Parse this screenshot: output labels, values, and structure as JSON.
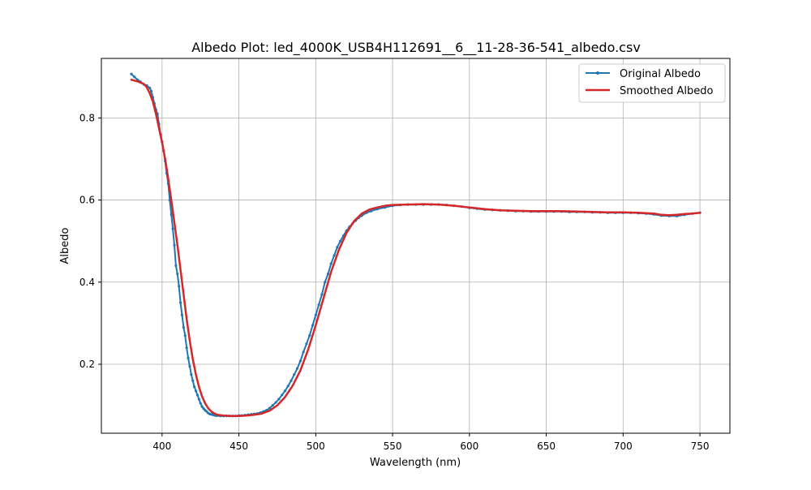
{
  "chart_data": {
    "type": "line",
    "title": "Albedo Plot: led_4000K_USB4H112691__6__11-28-36-541_albedo.csv",
    "xlabel": "Wavelength (nm)",
    "ylabel": "Albedo",
    "xlim": [
      360.5,
      769.5
    ],
    "ylim": [
      0.032,
      0.945
    ],
    "xticks": [
      400,
      450,
      500,
      550,
      600,
      650,
      700,
      750
    ],
    "yticks": [
      0.2,
      0.4,
      0.6,
      0.8
    ],
    "grid": true,
    "legend_position": "top-right",
    "series": [
      {
        "name": "Original Albedo",
        "color": "#1f77b4",
        "markers": true,
        "x": [
          380,
          382,
          384,
          386,
          388,
          390,
          392,
          393,
          394,
          395,
          396,
          397,
          398,
          399,
          400,
          401,
          402,
          403,
          404,
          405,
          406,
          407,
          408,
          409,
          410,
          411,
          412,
          413,
          414,
          415,
          416,
          417,
          418,
          419,
          420,
          421,
          422,
          423,
          424,
          425,
          426,
          427,
          428,
          429,
          430,
          431,
          432,
          433,
          434,
          435,
          436,
          438,
          440,
          442,
          444,
          446,
          448,
          450,
          452,
          454,
          456,
          458,
          460,
          462,
          464,
          466,
          468,
          470,
          472,
          474,
          476,
          478,
          480,
          482,
          484,
          486,
          488,
          490,
          492,
          494,
          496,
          498,
          500,
          502,
          504,
          506,
          508,
          510,
          512,
          514,
          516,
          518,
          520,
          522,
          524,
          526,
          528,
          530,
          533,
          536,
          540,
          545,
          550,
          555,
          560,
          565,
          570,
          575,
          580,
          585,
          590,
          595,
          600,
          605,
          610,
          615,
          620,
          625,
          630,
          635,
          640,
          645,
          650,
          655,
          660,
          665,
          670,
          675,
          680,
          685,
          690,
          695,
          700,
          705,
          710,
          715,
          720,
          725,
          730,
          735,
          740,
          745,
          750
        ],
        "y": [
          0.907,
          0.9,
          0.893,
          0.888,
          0.882,
          0.879,
          0.873,
          0.865,
          0.85,
          0.835,
          0.82,
          0.81,
          0.785,
          0.76,
          0.742,
          0.72,
          0.695,
          0.665,
          0.64,
          0.6,
          0.565,
          0.53,
          0.49,
          0.44,
          0.42,
          0.39,
          0.35,
          0.32,
          0.29,
          0.27,
          0.24,
          0.215,
          0.195,
          0.175,
          0.16,
          0.145,
          0.135,
          0.125,
          0.115,
          0.105,
          0.097,
          0.092,
          0.088,
          0.085,
          0.081,
          0.079,
          0.078,
          0.077,
          0.076,
          0.075,
          0.075,
          0.074,
          0.074,
          0.074,
          0.074,
          0.074,
          0.074,
          0.075,
          0.075,
          0.076,
          0.077,
          0.078,
          0.079,
          0.08,
          0.082,
          0.085,
          0.088,
          0.093,
          0.1,
          0.107,
          0.115,
          0.125,
          0.135,
          0.147,
          0.16,
          0.175,
          0.19,
          0.208,
          0.23,
          0.25,
          0.27,
          0.295,
          0.32,
          0.345,
          0.37,
          0.4,
          0.42,
          0.445,
          0.465,
          0.485,
          0.5,
          0.513,
          0.525,
          0.535,
          0.543,
          0.55,
          0.557,
          0.562,
          0.569,
          0.573,
          0.578,
          0.582,
          0.586,
          0.588,
          0.589,
          0.589,
          0.589,
          0.589,
          0.589,
          0.588,
          0.586,
          0.584,
          0.581,
          0.579,
          0.577,
          0.576,
          0.575,
          0.574,
          0.573,
          0.573,
          0.572,
          0.572,
          0.572,
          0.572,
          0.572,
          0.571,
          0.571,
          0.571,
          0.57,
          0.57,
          0.569,
          0.569,
          0.569,
          0.569,
          0.568,
          0.567,
          0.565,
          0.562,
          0.561,
          0.561,
          0.564,
          0.567,
          0.569
        ]
      },
      {
        "name": "Smoothed Albedo",
        "color": "#d62728",
        "markers": false,
        "x": [
          380,
          384,
          388,
          390,
          392,
          394,
          396,
          398,
          400,
          402,
          404,
          406,
          408,
          410,
          412,
          414,
          416,
          418,
          420,
          422,
          424,
          426,
          428,
          430,
          432,
          434,
          436,
          440,
          445,
          450,
          455,
          460,
          465,
          470,
          475,
          480,
          485,
          490,
          495,
          500,
          505,
          510,
          515,
          520,
          525,
          530,
          535,
          540,
          545,
          550,
          560,
          570,
          580,
          590,
          600,
          610,
          620,
          630,
          640,
          650,
          660,
          670,
          680,
          690,
          700,
          710,
          720,
          725,
          730,
          735,
          740,
          745,
          750
        ],
        "y": [
          0.893,
          0.889,
          0.883,
          0.875,
          0.86,
          0.84,
          0.81,
          0.775,
          0.74,
          0.7,
          0.652,
          0.6,
          0.545,
          0.49,
          0.43,
          0.37,
          0.31,
          0.258,
          0.212,
          0.175,
          0.145,
          0.122,
          0.105,
          0.093,
          0.085,
          0.08,
          0.077,
          0.075,
          0.074,
          0.074,
          0.075,
          0.077,
          0.08,
          0.087,
          0.1,
          0.12,
          0.148,
          0.185,
          0.235,
          0.295,
          0.36,
          0.425,
          0.478,
          0.52,
          0.549,
          0.567,
          0.577,
          0.582,
          0.586,
          0.588,
          0.589,
          0.59,
          0.589,
          0.586,
          0.582,
          0.578,
          0.575,
          0.574,
          0.573,
          0.573,
          0.573,
          0.572,
          0.571,
          0.57,
          0.57,
          0.569,
          0.567,
          0.564,
          0.563,
          0.564,
          0.566,
          0.567,
          0.569
        ]
      }
    ]
  }
}
